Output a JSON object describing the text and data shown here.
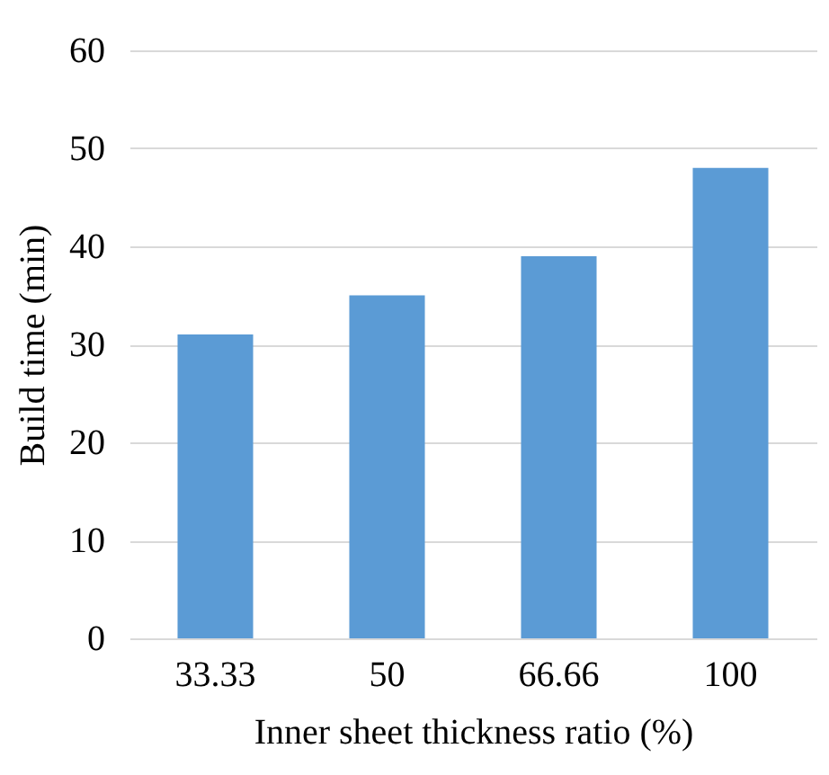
{
  "chart_data": {
    "type": "bar",
    "xlabel": "Inner sheet thickness ratio (%)",
    "ylabel": "Build time (min)",
    "categories": [
      "33.33",
      "50",
      "66.66",
      "100"
    ],
    "values": [
      31,
      35,
      39,
      48
    ],
    "color": "#5b9bd5",
    "ylim": [
      0,
      60
    ],
    "yticks": [
      0,
      10,
      20,
      30,
      40,
      50,
      60
    ],
    "grid": "y"
  }
}
